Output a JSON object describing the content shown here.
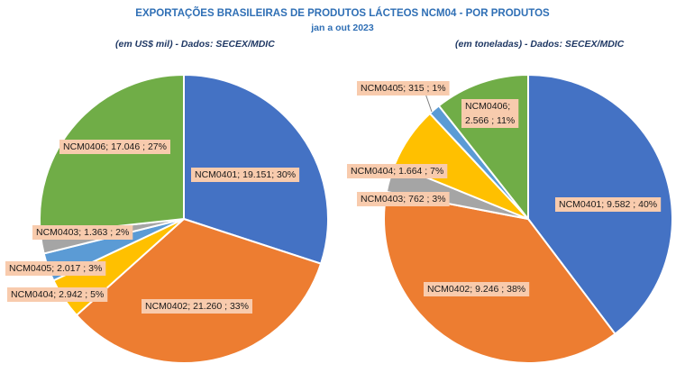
{
  "title": "EXPORTAÇÕES  BRASILEIRAS  DE PRODUTOS  LÁCTEOS NCM04 - POR PRODUTOS",
  "period": "jan a out 2023",
  "colors": {
    "NCM0401": "#4472C4",
    "NCM0402": "#ED7D31",
    "NCM0403": "#A5A5A5",
    "NCM0404": "#FFC000",
    "NCM0405": "#5B9BD5",
    "NCM0406": "#70AD47",
    "label_bg": "#F8CBAD"
  },
  "chart_data": [
    {
      "type": "pie",
      "subtitle": "(em US$ mil) - Dados: SECEX/MDIC",
      "slices": [
        {
          "category": "NCM0401",
          "value": 19151,
          "percent": 30,
          "label": "NCM0401; 19.151; 30%"
        },
        {
          "category": "NCM0402",
          "value": 21260,
          "percent": 33,
          "label": "NCM0402; 21.260 ; 33%"
        },
        {
          "category": "NCM0404",
          "value": 2942,
          "percent": 5,
          "label": "NCM0404; 2.942 ; 5%"
        },
        {
          "category": "NCM0405",
          "value": 2017,
          "percent": 3,
          "label": "NCM0405; 2.017 ; 3%"
        },
        {
          "category": "NCM0403",
          "value": 1363,
          "percent": 2,
          "label": "NCM0403; 1.363 ; 2%"
        },
        {
          "category": "NCM0406",
          "value": 17046,
          "percent": 27,
          "label": "NCM0406; 17.046 ; 27%"
        }
      ]
    },
    {
      "type": "pie",
      "subtitle": "(em toneladas) - Dados: SECEX/MDIC",
      "slices": [
        {
          "category": "NCM0401",
          "value": 9582,
          "percent": 40,
          "label": "NCM0401; 9.582 ; 40%"
        },
        {
          "category": "NCM0402",
          "value": 9246,
          "percent": 38,
          "label": "NCM0402; 9.246 ; 38%"
        },
        {
          "category": "NCM0403",
          "value": 762,
          "percent": 3,
          "label": "NCM0403; 762 ; 3%"
        },
        {
          "category": "NCM0404",
          "value": 1664,
          "percent": 7,
          "label": "NCM0404; 1.664 ; 7%"
        },
        {
          "category": "NCM0405",
          "value": 315,
          "percent": 1,
          "label": "NCM0405; 315 ; 1%"
        },
        {
          "category": "NCM0406",
          "value": 2566,
          "percent": 11,
          "label": "NCM0406;\n2.566 ; 11%"
        }
      ]
    }
  ]
}
